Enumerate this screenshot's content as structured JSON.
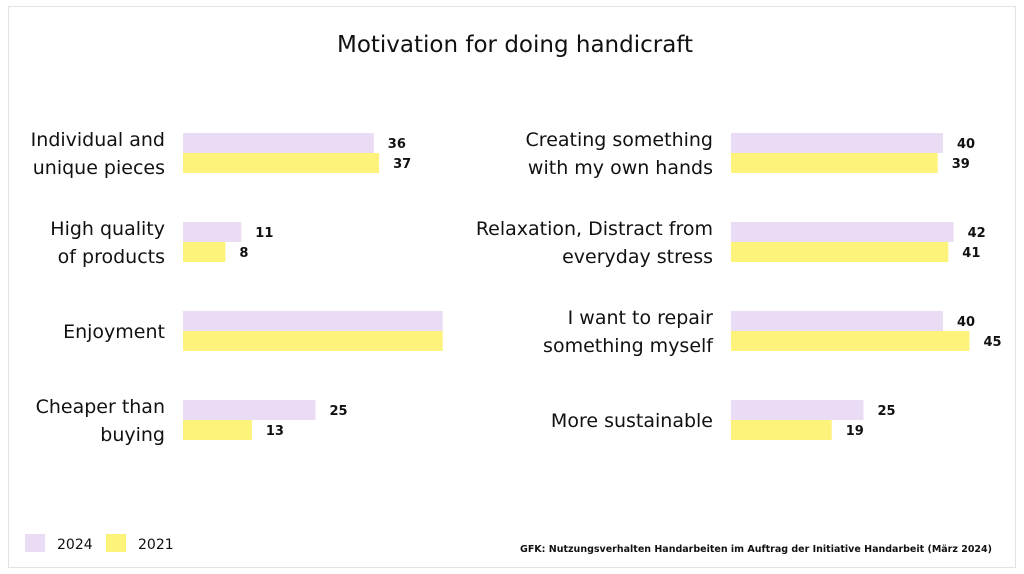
{
  "chart_data": {
    "type": "bar",
    "orientation": "horizontal",
    "title": "Motivation for doing handicraft",
    "source": "GFK: Nutzungsverhalten Handarbeiten im Auftrag der Initiative Handarbeit (März 2024)",
    "legend": {
      "placement": "bottom-left",
      "entries": [
        {
          "name": "2024",
          "color": "#ebdcf5"
        },
        {
          "name": "2021",
          "color": "#fdf37a"
        }
      ]
    },
    "panels": [
      {
        "categories": [
          {
            "label": [
              "Individual and",
              "unique pieces"
            ],
            "values": [
              36,
              37
            ],
            "labels": [
              "36",
              "37"
            ]
          },
          {
            "label": [
              "High quality",
              "of products"
            ],
            "values": [
              11,
              8
            ],
            "labels": [
              "11",
              "8"
            ]
          },
          {
            "label": [
              "Enjoyment"
            ],
            "values": [
              49,
              49
            ],
            "labels": [
              "",
              ""
            ]
          },
          {
            "label": [
              "Cheaper than",
              "buying"
            ],
            "values": [
              25,
              13
            ],
            "labels": [
              "25",
              "13"
            ]
          }
        ]
      },
      {
        "categories": [
          {
            "label": [
              "Creating something",
              "with my own hands"
            ],
            "values": [
              40,
              39
            ],
            "labels": [
              "40",
              "39"
            ]
          },
          {
            "label": [
              "Relaxation, Distract from",
              "everyday stress"
            ],
            "values": [
              42,
              41
            ],
            "labels": [
              "42",
              "41"
            ]
          },
          {
            "label": [
              "I want to repair",
              "something myself"
            ],
            "values": [
              40,
              45
            ],
            "labels": [
              "40",
              "45"
            ]
          },
          {
            "label": [
              "More sustainable"
            ],
            "values": [
              25,
              19
            ],
            "labels": [
              "25",
              "19"
            ]
          }
        ]
      }
    ]
  }
}
